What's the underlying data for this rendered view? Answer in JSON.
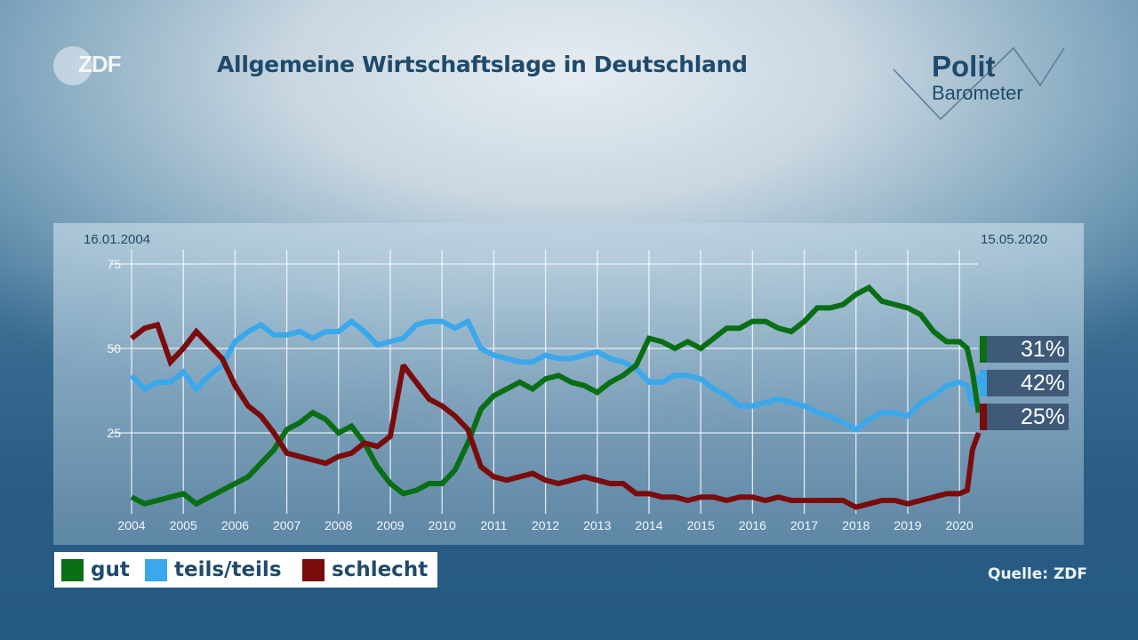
{
  "header": {
    "title": "Allgemeine Wirtschaftslage in Deutschland",
    "logo_left": "ZDF",
    "logo_right_line1": "Polit",
    "logo_right_line2": "Barometer"
  },
  "source": "Quelle: ZDF",
  "chart_data": {
    "type": "line",
    "title": "Allgemeine Wirtschaftslage in Deutschland",
    "start_date": "16.01.2004",
    "end_date": "15.05.2020",
    "xlim": [
      2004,
      2020.37
    ],
    "ylim": [
      0,
      75
    ],
    "grid": true,
    "y_ticks": [
      "75",
      "50",
      "25"
    ],
    "x_ticks": [
      "2004",
      "2005",
      "2006",
      "2007",
      "2008",
      "2009",
      "2010",
      "2011",
      "2012",
      "2013",
      "2014",
      "2015",
      "2016",
      "2017",
      "2018",
      "2019",
      "2020"
    ],
    "legend_placement": "bottom-left",
    "legend": [
      "gut",
      "teils/teils",
      "schlecht"
    ],
    "final_values": [
      {
        "series": "gut",
        "label": "31%",
        "value": 31
      },
      {
        "series": "teils/teils",
        "label": "42%",
        "value": 42
      },
      {
        "series": "schlecht",
        "label": "25%",
        "value": 25
      }
    ],
    "x": [
      2004.0,
      2004.25,
      2004.5,
      2004.75,
      2005.0,
      2005.25,
      2005.5,
      2005.75,
      2006.0,
      2006.25,
      2006.5,
      2006.75,
      2007.0,
      2007.25,
      2007.5,
      2007.75,
      2008.0,
      2008.25,
      2008.5,
      2008.75,
      2009.0,
      2009.25,
      2009.5,
      2009.75,
      2010.0,
      2010.25,
      2010.5,
      2010.75,
      2011.0,
      2011.25,
      2011.5,
      2011.75,
      2012.0,
      2012.25,
      2012.5,
      2012.75,
      2013.0,
      2013.25,
      2013.5,
      2013.75,
      2014.0,
      2014.25,
      2014.5,
      2014.75,
      2015.0,
      2015.25,
      2015.5,
      2015.75,
      2016.0,
      2016.25,
      2016.5,
      2016.75,
      2017.0,
      2017.25,
      2017.5,
      2017.75,
      2018.0,
      2018.25,
      2018.5,
      2018.75,
      2019.0,
      2019.25,
      2019.5,
      2019.75,
      2020.0,
      2020.15,
      2020.25,
      2020.37
    ],
    "series": [
      {
        "name": "gut",
        "color": "#0a6e14",
        "values": [
          6,
          4,
          5,
          6,
          7,
          4,
          6,
          8,
          10,
          12,
          16,
          20,
          26,
          28,
          31,
          29,
          25,
          27,
          22,
          15,
          10,
          7,
          8,
          10,
          10,
          14,
          22,
          32,
          36,
          38,
          40,
          38,
          41,
          42,
          40,
          39,
          37,
          40,
          42,
          45,
          53,
          52,
          50,
          52,
          50,
          53,
          56,
          56,
          58,
          58,
          56,
          55,
          58,
          62,
          62,
          63,
          66,
          68,
          64,
          63,
          62,
          60,
          55,
          52,
          52,
          50,
          43,
          31
        ]
      },
      {
        "name": "teils/teils",
        "color": "#3aa8ea",
        "values": [
          42,
          38,
          40,
          40,
          43,
          38,
          42,
          45,
          52,
          55,
          57,
          54,
          54,
          55,
          53,
          55,
          55,
          58,
          55,
          51,
          52,
          53,
          57,
          58,
          58,
          56,
          58,
          50,
          48,
          47,
          46,
          46,
          48,
          47,
          47,
          48,
          49,
          47,
          46,
          44,
          40,
          40,
          42,
          42,
          41,
          38,
          36,
          33,
          33,
          34,
          35,
          34,
          33,
          31,
          30,
          28,
          26,
          29,
          31,
          31,
          30,
          34,
          36,
          39,
          40,
          39,
          33,
          42
        ]
      },
      {
        "name": "schlecht",
        "color": "#7a0c0c",
        "values": [
          53,
          56,
          57,
          46,
          50,
          55,
          51,
          47,
          39,
          33,
          30,
          25,
          19,
          18,
          17,
          16,
          18,
          19,
          22,
          21,
          24,
          45,
          40,
          35,
          33,
          30,
          26,
          15,
          12,
          11,
          12,
          13,
          11,
          10,
          11,
          12,
          11,
          10,
          10,
          7,
          7,
          6,
          6,
          5,
          6,
          6,
          5,
          6,
          6,
          5,
          6,
          5,
          5,
          5,
          5,
          5,
          3,
          4,
          5,
          5,
          4,
          5,
          6,
          7,
          7,
          8,
          20,
          25
        ]
      }
    ]
  }
}
